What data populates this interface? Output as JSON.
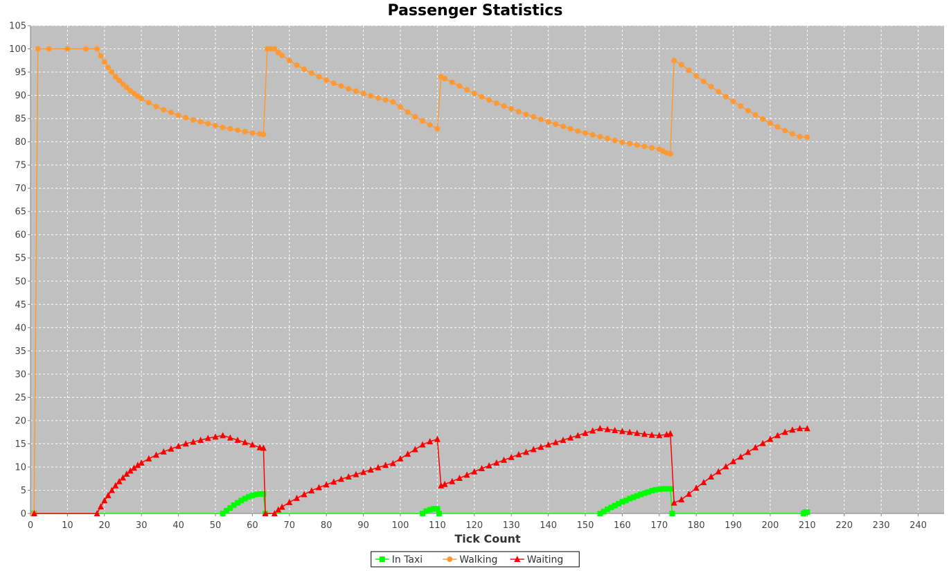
{
  "chart_data": {
    "type": "line",
    "title": "Passenger Statistics",
    "xlabel": "Tick Count",
    "ylabel": "",
    "xlim": [
      0,
      247
    ],
    "ylim": [
      0,
      105
    ],
    "x_ticks": [
      0,
      10,
      20,
      30,
      40,
      50,
      60,
      70,
      80,
      90,
      100,
      110,
      120,
      130,
      140,
      150,
      160,
      170,
      180,
      190,
      200,
      210,
      220,
      230,
      240
    ],
    "y_ticks": [
      0,
      5,
      10,
      15,
      20,
      25,
      30,
      35,
      40,
      45,
      50,
      55,
      60,
      65,
      70,
      75,
      80,
      85,
      90,
      95,
      100,
      105
    ],
    "grid": true,
    "legend_position": "bottom",
    "series": [
      {
        "name": "In Taxi",
        "color": "#00ff00",
        "marker": "square",
        "points": [
          [
            1,
            0
          ],
          [
            52,
            0
          ],
          [
            53,
            0.6
          ],
          [
            54,
            1.2
          ],
          [
            55,
            1.8
          ],
          [
            56,
            2.3
          ],
          [
            57,
            2.8
          ],
          [
            58,
            3.2
          ],
          [
            59,
            3.6
          ],
          [
            60,
            3.9
          ],
          [
            61,
            4.1
          ],
          [
            62,
            4.2
          ],
          [
            63,
            4.2
          ],
          [
            63.5,
            0
          ],
          [
            106,
            0
          ],
          [
            107,
            0.5
          ],
          [
            108,
            0.8
          ],
          [
            109,
            1.0
          ],
          [
            110,
            1.0
          ],
          [
            110.5,
            0
          ],
          [
            154,
            0
          ],
          [
            155,
            0.4
          ],
          [
            156,
            0.9
          ],
          [
            157,
            1.3
          ],
          [
            158,
            1.7
          ],
          [
            159,
            2.1
          ],
          [
            160,
            2.5
          ],
          [
            161,
            2.8
          ],
          [
            162,
            3.2
          ],
          [
            163,
            3.5
          ],
          [
            164,
            3.8
          ],
          [
            165,
            4.1
          ],
          [
            166,
            4.4
          ],
          [
            167,
            4.6
          ],
          [
            168,
            4.9
          ],
          [
            169,
            5.1
          ],
          [
            170,
            5.2
          ],
          [
            171,
            5.3
          ],
          [
            172,
            5.3
          ],
          [
            173,
            5.3
          ],
          [
            173.5,
            0
          ],
          [
            209,
            0
          ],
          [
            209.5,
            0.3
          ],
          [
            210,
            0.3
          ]
        ]
      },
      {
        "name": "Walking",
        "color": "#ff9933",
        "marker": "circle",
        "points": [
          [
            1,
            0
          ],
          [
            2,
            100
          ],
          [
            5,
            100
          ],
          [
            10,
            100
          ],
          [
            15,
            100
          ],
          [
            18,
            100
          ],
          [
            19,
            98.5
          ],
          [
            20,
            97.2
          ],
          [
            21,
            96
          ],
          [
            22,
            95
          ],
          [
            23,
            94
          ],
          [
            24,
            93.2
          ],
          [
            25,
            92.4
          ],
          [
            26,
            91.7
          ],
          [
            27,
            91
          ],
          [
            28,
            90.4
          ],
          [
            29,
            89.8
          ],
          [
            30,
            89.3
          ],
          [
            32,
            88.4
          ],
          [
            34,
            87.6
          ],
          [
            36,
            86.9
          ],
          [
            38,
            86.3
          ],
          [
            40,
            85.7
          ],
          [
            42,
            85.2
          ],
          [
            44,
            84.7
          ],
          [
            46,
            84.3
          ],
          [
            48,
            83.9
          ],
          [
            50,
            83.5
          ],
          [
            52,
            83.1
          ],
          [
            54,
            82.8
          ],
          [
            56,
            82.5
          ],
          [
            58,
            82.2
          ],
          [
            60,
            81.9
          ],
          [
            62,
            81.7
          ],
          [
            63,
            81.6
          ],
          [
            64,
            100
          ],
          [
            65,
            100
          ],
          [
            66,
            100
          ],
          [
            67,
            99.2
          ],
          [
            68,
            98.6
          ],
          [
            70,
            97.5
          ],
          [
            72,
            96.5
          ],
          [
            74,
            95.6
          ],
          [
            76,
            94.8
          ],
          [
            78,
            94
          ],
          [
            80,
            93.3
          ],
          [
            82,
            92.6
          ],
          [
            84,
            92
          ],
          [
            86,
            91.4
          ],
          [
            88,
            90.9
          ],
          [
            90,
            90.4
          ],
          [
            92,
            89.9
          ],
          [
            94,
            89.4
          ],
          [
            96,
            89
          ],
          [
            98,
            88.6
          ],
          [
            100,
            87.5
          ],
          [
            102,
            86.4
          ],
          [
            104,
            85.4
          ],
          [
            106,
            84.5
          ],
          [
            108,
            83.6
          ],
          [
            110,
            82.8
          ],
          [
            111,
            94
          ],
          [
            112,
            93.6
          ],
          [
            114,
            92.8
          ],
          [
            116,
            92
          ],
          [
            118,
            91.2
          ],
          [
            120,
            90.4
          ],
          [
            122,
            89.7
          ],
          [
            124,
            89
          ],
          [
            126,
            88.3
          ],
          [
            128,
            87.7
          ],
          [
            130,
            87.1
          ],
          [
            132,
            86.5
          ],
          [
            134,
            85.9
          ],
          [
            136,
            85.4
          ],
          [
            138,
            84.8
          ],
          [
            140,
            84.3
          ],
          [
            142,
            83.8
          ],
          [
            144,
            83.3
          ],
          [
            146,
            82.8
          ],
          [
            148,
            82.3
          ],
          [
            150,
            81.9
          ],
          [
            152,
            81.5
          ],
          [
            154,
            81.1
          ],
          [
            156,
            80.7
          ],
          [
            158,
            80.3
          ],
          [
            160,
            79.9
          ],
          [
            162,
            79.6
          ],
          [
            164,
            79.3
          ],
          [
            166,
            79
          ],
          [
            168,
            78.7
          ],
          [
            170,
            78.4
          ],
          [
            171,
            78
          ],
          [
            172,
            77.6
          ],
          [
            173,
            77.4
          ],
          [
            174,
            97.5
          ],
          [
            176,
            96.6
          ],
          [
            178,
            95.4
          ],
          [
            180,
            94.2
          ],
          [
            182,
            93
          ],
          [
            184,
            91.9
          ],
          [
            186,
            90.8
          ],
          [
            188,
            89.7
          ],
          [
            190,
            88.7
          ],
          [
            192,
            87.7
          ],
          [
            194,
            86.7
          ],
          [
            196,
            85.8
          ],
          [
            198,
            84.9
          ],
          [
            200,
            84
          ],
          [
            202,
            83.2
          ],
          [
            204,
            82.4
          ],
          [
            206,
            81.7
          ],
          [
            208,
            81.1
          ],
          [
            210,
            81
          ]
        ]
      },
      {
        "name": "Waiting",
        "color": "#ff0000",
        "marker": "triangle",
        "points": [
          [
            1,
            0
          ],
          [
            18,
            0
          ],
          [
            19,
            1.5
          ],
          [
            20,
            2.8
          ],
          [
            21,
            3.9
          ],
          [
            22,
            5
          ],
          [
            23,
            6
          ],
          [
            24,
            6.9
          ],
          [
            25,
            7.7
          ],
          [
            26,
            8.5
          ],
          [
            27,
            9.2
          ],
          [
            28,
            9.8
          ],
          [
            29,
            10.4
          ],
          [
            30,
            10.9
          ],
          [
            32,
            11.8
          ],
          [
            34,
            12.6
          ],
          [
            36,
            13.3
          ],
          [
            38,
            13.9
          ],
          [
            40,
            14.5
          ],
          [
            42,
            15
          ],
          [
            44,
            15.4
          ],
          [
            46,
            15.8
          ],
          [
            48,
            16.2
          ],
          [
            50,
            16.5
          ],
          [
            52,
            16.8
          ],
          [
            54,
            16.3
          ],
          [
            56,
            15.8
          ],
          [
            58,
            15.3
          ],
          [
            60,
            14.8
          ],
          [
            62,
            14.2
          ],
          [
            63,
            14.1
          ],
          [
            63.5,
            0
          ],
          [
            66,
            0
          ],
          [
            67,
            0.8
          ],
          [
            68,
            1.4
          ],
          [
            70,
            2.4
          ],
          [
            72,
            3.3
          ],
          [
            74,
            4.1
          ],
          [
            76,
            4.9
          ],
          [
            78,
            5.6
          ],
          [
            80,
            6.2
          ],
          [
            82,
            6.8
          ],
          [
            84,
            7.4
          ],
          [
            86,
            7.9
          ],
          [
            88,
            8.4
          ],
          [
            90,
            8.9
          ],
          [
            92,
            9.4
          ],
          [
            94,
            9.9
          ],
          [
            96,
            10.4
          ],
          [
            98,
            10.8
          ],
          [
            100,
            11.8
          ],
          [
            102,
            12.8
          ],
          [
            104,
            13.8
          ],
          [
            106,
            14.8
          ],
          [
            108,
            15.5
          ],
          [
            110,
            16
          ],
          [
            111,
            6
          ],
          [
            112,
            6.3
          ],
          [
            114,
            6.9
          ],
          [
            116,
            7.6
          ],
          [
            118,
            8.3
          ],
          [
            120,
            9
          ],
          [
            122,
            9.7
          ],
          [
            124,
            10.3
          ],
          [
            126,
            10.9
          ],
          [
            128,
            11.5
          ],
          [
            130,
            12.1
          ],
          [
            132,
            12.7
          ],
          [
            134,
            13.2
          ],
          [
            136,
            13.8
          ],
          [
            138,
            14.3
          ],
          [
            140,
            14.8
          ],
          [
            142,
            15.3
          ],
          [
            144,
            15.8
          ],
          [
            146,
            16.3
          ],
          [
            148,
            16.8
          ],
          [
            150,
            17.3
          ],
          [
            152,
            17.8
          ],
          [
            154,
            18.3
          ],
          [
            156,
            18.1
          ],
          [
            158,
            17.9
          ],
          [
            160,
            17.7
          ],
          [
            162,
            17.5
          ],
          [
            164,
            17.3
          ],
          [
            166,
            17.1
          ],
          [
            168,
            16.9
          ],
          [
            170,
            16.8
          ],
          [
            172,
            17
          ],
          [
            173,
            17.2
          ],
          [
            174,
            2.3
          ],
          [
            176,
            3
          ],
          [
            178,
            4.2
          ],
          [
            180,
            5.5
          ],
          [
            182,
            6.7
          ],
          [
            184,
            7.9
          ],
          [
            186,
            9
          ],
          [
            188,
            10.1
          ],
          [
            190,
            11.2
          ],
          [
            192,
            12.2
          ],
          [
            194,
            13.2
          ],
          [
            196,
            14.2
          ],
          [
            198,
            15.1
          ],
          [
            200,
            16
          ],
          [
            202,
            16.8
          ],
          [
            204,
            17.5
          ],
          [
            206,
            18
          ],
          [
            208,
            18.3
          ],
          [
            210,
            18.3
          ]
        ]
      }
    ]
  }
}
